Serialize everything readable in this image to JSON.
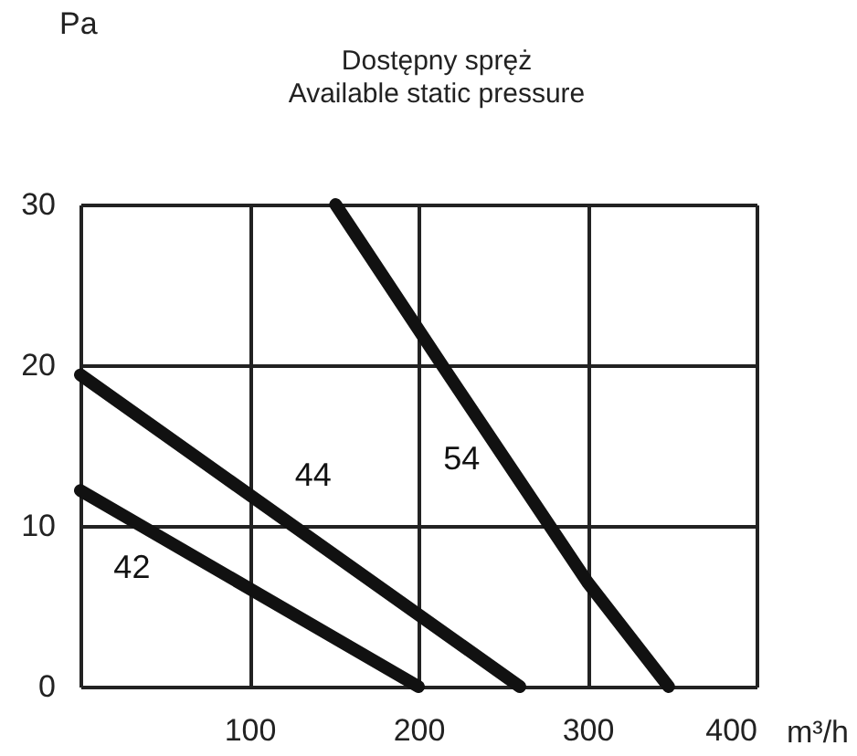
{
  "chart_data": {
    "type": "line",
    "title": "Dostępny spręż",
    "subtitle": "Available static pressure",
    "xlabel": "m³/h",
    "ylabel": "Pa",
    "xlim": [
      0,
      400
    ],
    "xticks": [
      {
        "value": 0,
        "label": null
      },
      100,
      200,
      300,
      400
    ],
    "ylim": [
      0,
      30
    ],
    "yticks": [
      0,
      10,
      20,
      30
    ],
    "grid": true,
    "legend": false,
    "marker": "none",
    "line_style": "solid",
    "series": [
      {
        "name": "42",
        "color": "#111111",
        "x": [
          0,
          200
        ],
        "values": [
          12.2,
          0
        ]
      },
      {
        "name": "44",
        "color": "#111111",
        "x": [
          0,
          260
        ],
        "values": [
          19.4,
          0
        ]
      },
      {
        "name": "54",
        "color": "#111111",
        "x": [
          151,
          214,
          300,
          348
        ],
        "values": [
          30,
          20,
          6.5,
          0
        ]
      }
    ]
  }
}
